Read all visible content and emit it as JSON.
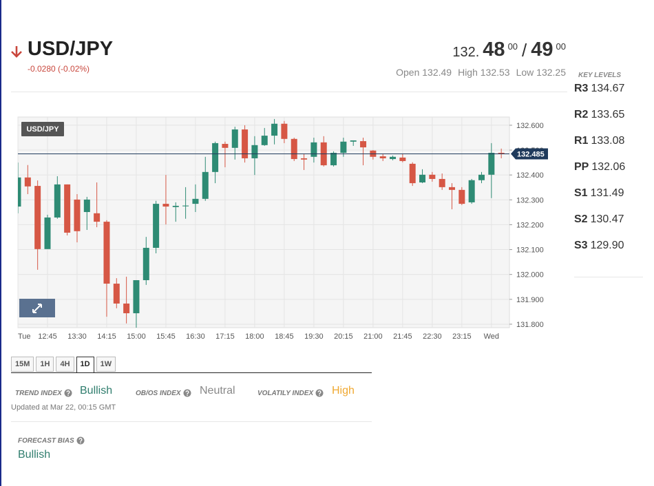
{
  "header": {
    "pair": "USD/JPY",
    "change": "-0.0280 (-0.02%)",
    "bid_prefix": "132.",
    "bid_big": "48",
    "bid_sup": "00",
    "separator": "/",
    "ask_big": "49",
    "ask_sup": "00",
    "stats": [
      {
        "label": "Open",
        "value": "132.49"
      },
      {
        "label": "High",
        "value": "132.53"
      },
      {
        "label": "Low",
        "value": "132.25"
      }
    ]
  },
  "key_levels": {
    "title": "KEY LEVELS",
    "levels": [
      {
        "name": "R3",
        "value": "134.67"
      },
      {
        "name": "R2",
        "value": "133.65"
      },
      {
        "name": "R1",
        "value": "133.08"
      },
      {
        "name": "PP",
        "value": "132.06"
      },
      {
        "name": "S1",
        "value": "131.49"
      },
      {
        "name": "S2",
        "value": "130.47"
      },
      {
        "name": "S3",
        "value": "129.90"
      }
    ]
  },
  "chart_data": {
    "type": "candlestick",
    "title": "USD/JPY",
    "categories": [
      "Tue",
      null,
      null,
      "12:45",
      null,
      null,
      "13:30",
      null,
      null,
      "14:15",
      null,
      null,
      "15:00",
      null,
      null,
      "15:45",
      null,
      null,
      "16:30",
      null,
      null,
      "17:15",
      null,
      null,
      "18:00",
      null,
      null,
      "18:45",
      null,
      null,
      "19:30",
      null,
      null,
      "20:15",
      null,
      null,
      "21:00",
      null,
      null,
      "21:45",
      null,
      null,
      "22:30",
      null,
      null,
      "23:15",
      null,
      null,
      "Wed",
      null
    ],
    "open": [
      132.273,
      132.39,
      132.356,
      132.102,
      132.229,
      132.362,
      132.301,
      132.251,
      132.246,
      132.212,
      131.963,
      131.883,
      131.844,
      131.977,
      132.107,
      132.284,
      132.271,
      132.274,
      132.284,
      132.304,
      132.412,
      132.525,
      132.509,
      132.583,
      132.467,
      132.52,
      132.558,
      132.606,
      132.545,
      132.467,
      132.473,
      132.531,
      132.439,
      132.489,
      132.534,
      132.536,
      132.498,
      132.475,
      132.464,
      132.47,
      132.445,
      132.37,
      132.401,
      132.384,
      132.351,
      132.34,
      132.29,
      132.379,
      132.401,
      132.489
    ],
    "high": [
      132.45,
      132.44,
      132.378,
      132.24,
      132.395,
      132.362,
      132.323,
      132.312,
      132.37,
      132.218,
      131.985,
      131.991,
      131.977,
      132.151,
      132.296,
      132.4,
      132.29,
      132.351,
      132.362,
      132.473,
      132.534,
      132.534,
      132.594,
      132.6,
      132.556,
      132.589,
      132.625,
      132.617,
      132.55,
      132.484,
      132.55,
      132.556,
      132.495,
      132.55,
      132.539,
      132.55,
      132.5,
      132.484,
      132.478,
      132.484,
      132.451,
      132.423,
      132.412,
      132.406,
      132.367,
      132.351,
      132.384,
      132.412,
      132.528,
      132.506
    ],
    "low": [
      132.246,
      132.323,
      132.019,
      132.102,
      132.224,
      132.157,
      132.129,
      132.179,
      132.19,
      131.83,
      131.864,
      131.803,
      131.786,
      131.958,
      132.085,
      132.201,
      132.212,
      132.224,
      132.251,
      132.296,
      132.367,
      132.431,
      132.462,
      132.45,
      132.4,
      132.517,
      132.523,
      132.528,
      132.456,
      132.42,
      132.45,
      132.434,
      132.434,
      132.473,
      132.517,
      132.439,
      132.462,
      132.456,
      132.459,
      132.451,
      132.356,
      132.367,
      132.373,
      132.34,
      132.262,
      132.279,
      132.284,
      132.367,
      132.307,
      132.467
    ],
    "close": [
      132.39,
      132.354,
      132.102,
      132.229,
      132.362,
      132.168,
      132.174,
      132.301,
      132.212,
      131.963,
      131.883,
      131.844,
      131.977,
      132.107,
      132.284,
      132.273,
      132.276,
      132.277,
      132.304,
      132.412,
      132.528,
      132.509,
      132.583,
      132.467,
      132.52,
      132.558,
      132.606,
      132.545,
      132.464,
      132.462,
      132.531,
      132.439,
      132.489,
      132.534,
      132.539,
      132.511,
      132.473,
      132.467,
      132.473,
      132.456,
      132.367,
      132.401,
      132.384,
      132.351,
      132.34,
      132.284,
      132.379,
      132.401,
      132.489,
      132.484
    ],
    "up_color": "#2e8b74",
    "down_color": "#d65745",
    "last": 132.485,
    "last_color": "#1f3a5c",
    "ylim": [
      131.786,
      132.633
    ],
    "yticks": [
      {
        "value": 131.8,
        "label": "131.800"
      },
      {
        "value": 131.9,
        "label": "131.900"
      },
      {
        "value": 132.0,
        "label": "132.000"
      },
      {
        "value": 132.1,
        "label": "132.100"
      },
      {
        "value": 132.2,
        "label": "132.200"
      },
      {
        "value": 132.3,
        "label": "132.300"
      },
      {
        "value": 132.4,
        "label": "132.400"
      },
      {
        "value": 132.5,
        "label": "132.500"
      },
      {
        "value": 132.6,
        "label": "132.600"
      }
    ],
    "grid": true
  },
  "timeframes": {
    "options": [
      "15M",
      "1H",
      "4H",
      "1D",
      "1W"
    ],
    "selected": "1D"
  },
  "indices": [
    {
      "label": "TREND INDEX",
      "value": "Bullish"
    },
    {
      "label": "OB/OS INDEX",
      "value": "Neutral"
    },
    {
      "label": "VOLATILY INDEX",
      "value": "High"
    }
  ],
  "updated": "Updated at Mar 22, 00:15 GMT",
  "forecast": {
    "label": "FORECAST BIAS",
    "value": "Bullish"
  }
}
